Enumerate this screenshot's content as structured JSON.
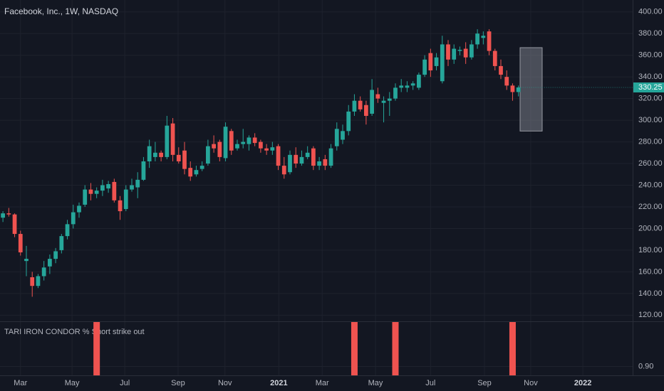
{
  "chart_data": {
    "type": "candlestick",
    "title": "Facebook, Inc., 1W, NASDAQ",
    "up_color": "#26a69a",
    "down_color": "#ef5350",
    "grid": true,
    "open": [
      210,
      214,
      213,
      195,
      170,
      155,
      147,
      156,
      165,
      172,
      180,
      193,
      204,
      215,
      222,
      236,
      232,
      235,
      237,
      243,
      226,
      218,
      236,
      238,
      245,
      262,
      266,
      270,
      266,
      297,
      268,
      272,
      256,
      250,
      255,
      260,
      278,
      280,
      265,
      290,
      274,
      278,
      278,
      284,
      280,
      274,
      272,
      276,
      258,
      252,
      268,
      260,
      266,
      274,
      258,
      264,
      258,
      276,
      282,
      290,
      308,
      318,
      314,
      306,
      324,
      316,
      318,
      320,
      330,
      330,
      332,
      330,
      342,
      362,
      350,
      336,
      370,
      356,
      364,
      366,
      358,
      370,
      376,
      382,
      364,
      350,
      340,
      332,
      326
    ],
    "high": [
      216,
      219,
      214,
      198,
      184,
      160,
      158,
      170,
      176,
      182,
      195,
      208,
      222,
      224,
      240,
      242,
      238,
      245,
      244,
      246,
      230,
      240,
      246,
      252,
      266,
      282,
      280,
      272,
      304,
      302,
      275,
      280,
      262,
      258,
      262,
      282,
      286,
      282,
      298,
      292,
      282,
      292,
      286,
      288,
      282,
      278,
      280,
      278,
      266,
      272,
      275,
      272,
      276,
      276,
      266,
      268,
      278,
      298,
      296,
      314,
      324,
      322,
      318,
      338,
      330,
      322,
      326,
      334,
      338,
      336,
      336,
      344,
      360,
      366,
      362,
      378,
      374,
      370,
      368,
      372,
      374,
      384,
      382,
      384,
      366,
      356,
      346,
      334,
      332
    ],
    "low": [
      206,
      211,
      192,
      175,
      156,
      137,
      145,
      152,
      158,
      168,
      177,
      190,
      200,
      210,
      220,
      226,
      228,
      230,
      233,
      224,
      208,
      216,
      234,
      228,
      244,
      256,
      262,
      262,
      264,
      262,
      260,
      250,
      244,
      248,
      253,
      258,
      270,
      262,
      262,
      268,
      272,
      274,
      272,
      276,
      270,
      268,
      268,
      254,
      246,
      250,
      256,
      258,
      264,
      254,
      254,
      254,
      256,
      272,
      278,
      286,
      304,
      308,
      296,
      304,
      316,
      298,
      304,
      318,
      326,
      326,
      328,
      328,
      340,
      340,
      346,
      334,
      350,
      352,
      360,
      352,
      356,
      366,
      370,
      360,
      346,
      338,
      328,
      318,
      322
    ],
    "close": [
      214,
      213,
      195,
      178,
      172,
      147,
      156,
      164,
      172,
      179,
      193,
      204,
      215,
      221,
      236,
      232,
      235,
      240,
      241,
      226,
      216,
      236,
      240,
      245,
      262,
      276,
      270,
      266,
      295,
      268,
      262,
      255,
      248,
      254,
      258,
      276,
      274,
      266,
      294,
      272,
      278,
      280,
      284,
      279,
      274,
      272,
      275,
      258,
      250,
      268,
      260,
      266,
      270,
      258,
      262,
      258,
      274,
      292,
      290,
      308,
      318,
      310,
      304,
      328,
      320,
      318,
      320,
      330,
      332,
      332,
      334,
      342,
      356,
      346,
      358,
      370,
      356,
      366,
      365,
      358,
      370,
      380,
      378,
      364,
      350,
      342,
      332,
      326,
      330.25
    ],
    "xlim": [
      -0.5,
      107.5
    ],
    "xticks": [
      {
        "value": 3.0,
        "label": "Mar"
      },
      {
        "value": 11.8,
        "label": "May"
      },
      {
        "value": 20.8,
        "label": "Jul"
      },
      {
        "value": 29.9,
        "label": "Sep"
      },
      {
        "value": 37.9,
        "label": "Nov"
      },
      {
        "value": 47.1,
        "label": "2021"
      },
      {
        "value": 54.5,
        "label": "Mar"
      },
      {
        "value": 63.6,
        "label": "May"
      },
      {
        "value": 73.0,
        "label": "Jul"
      },
      {
        "value": 82.2,
        "label": "Sep"
      },
      {
        "value": 90.1,
        "label": "Nov"
      },
      {
        "value": 99.0,
        "label": "2022"
      }
    ],
    "ylim": [
      114.3,
      411
    ],
    "yticks": [
      {
        "value": 120,
        "label": "120.00"
      },
      {
        "value": 140,
        "label": "140.00"
      },
      {
        "value": 160,
        "label": "160.00"
      },
      {
        "value": 180,
        "label": "180.00"
      },
      {
        "value": 200,
        "label": "200.00"
      },
      {
        "value": 220,
        "label": "220.00"
      },
      {
        "value": 240,
        "label": "240.00"
      },
      {
        "value": 260,
        "label": "260.00"
      },
      {
        "value": 280,
        "label": "280.00"
      },
      {
        "value": 300,
        "label": "300.00"
      },
      {
        "value": 320,
        "label": "320.00"
      },
      {
        "value": 340,
        "label": "340.00"
      },
      {
        "value": 360,
        "label": "360.00"
      },
      {
        "value": 380,
        "label": "380.00"
      },
      {
        "value": 400,
        "label": "400.00"
      }
    ],
    "last_price": {
      "value": 330.25,
      "label": "330.25"
    },
    "range_box": {
      "low": 290,
      "high": 367
    },
    "indicator": {
      "name": "TARI IRON CONDOR % Short strike out",
      "color": "#ef5350",
      "x": [
        16,
        60,
        67,
        87
      ],
      "values": [
        1,
        1,
        1,
        1
      ],
      "ylim": [
        0.88,
        1.0
      ],
      "yticks": [
        {
          "value": 0.9,
          "label": "0.90"
        }
      ]
    }
  }
}
